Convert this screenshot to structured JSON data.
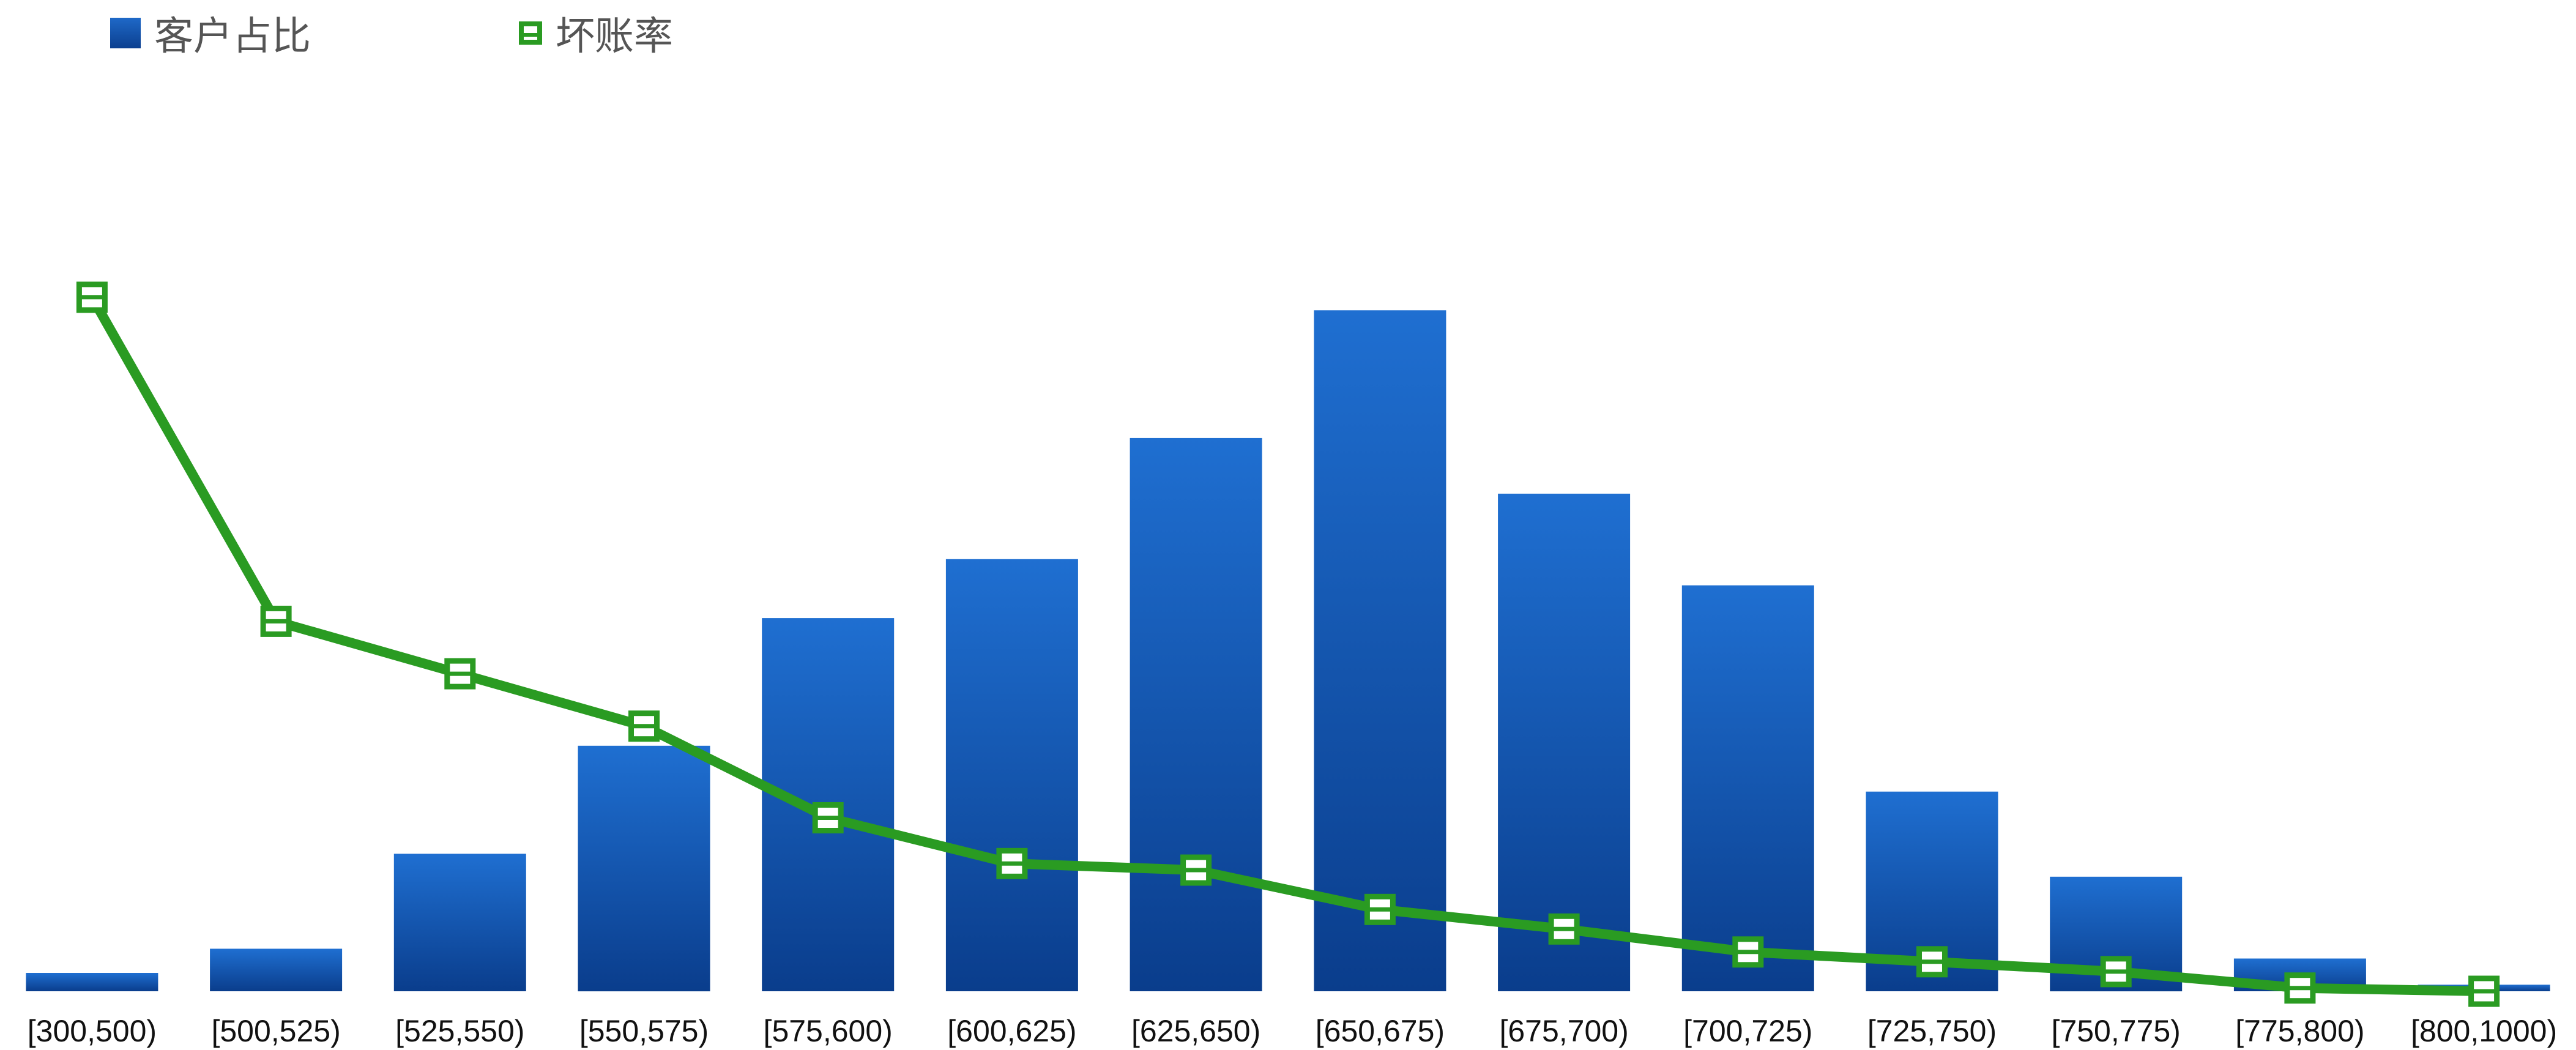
{
  "legend": {
    "bar_label": "客户占比",
    "line_label": "坏账率"
  },
  "colors": {
    "bar_top": "#1f6fd1",
    "bar_bottom": "#0a3d8c",
    "line": "#2a9b22"
  },
  "chart_data": {
    "type": "bar",
    "categories": [
      "[300,500)",
      "[500,525)",
      "[525,550)",
      "[550,575)",
      "[575,600)",
      "[600,625)",
      "[625,650)",
      "[650,675)",
      "[675,700)",
      "[700,725)",
      "[725,750)",
      "[750,775)",
      "[775,800)",
      "[800,1000)"
    ],
    "series": [
      {
        "name": "客户占比",
        "type": "bar",
        "values": [
          0.28,
          0.65,
          2.1,
          3.75,
          5.7,
          6.6,
          8.45,
          10.4,
          7.6,
          6.2,
          3.05,
          1.75,
          0.5,
          0.1
        ]
      },
      {
        "name": "坏账率",
        "type": "line",
        "values": [
          10.6,
          5.65,
          4.85,
          4.05,
          2.65,
          1.95,
          1.85,
          1.25,
          0.95,
          0.6,
          0.45,
          0.3,
          0.05,
          0.0
        ]
      }
    ],
    "xlabel": "",
    "ylabel": "",
    "ylim": [
      0,
      15
    ],
    "grid": false,
    "legend_position": "top-left"
  }
}
